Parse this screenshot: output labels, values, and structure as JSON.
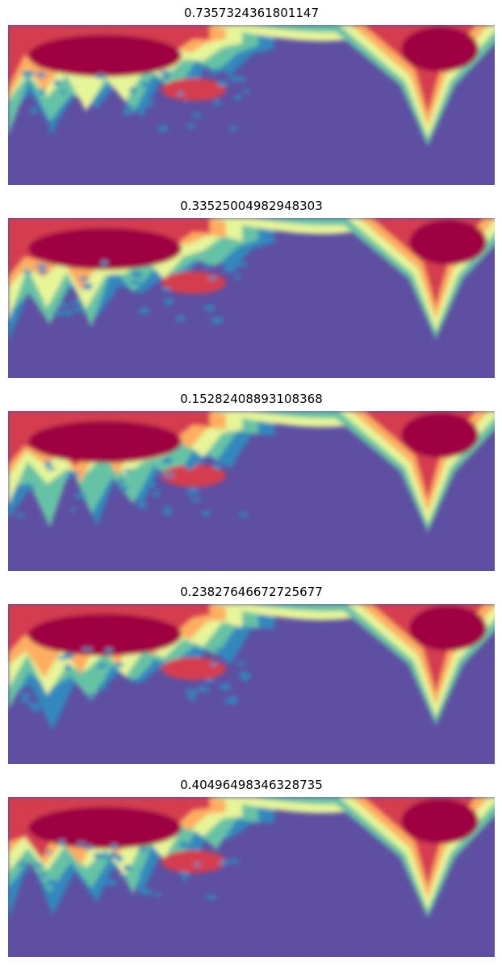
{
  "chart_data": [
    {
      "type": "heatmap",
      "title": "0.7357324361801147",
      "colormap": "Spectral_r",
      "axes_visible": false,
      "description_hint": "scalogram-like spectrogram; high energy in upper-left and upper-right lobes"
    },
    {
      "type": "heatmap",
      "title": "0.33525004982948303",
      "colormap": "Spectral_r",
      "axes_visible": false
    },
    {
      "type": "heatmap",
      "title": "0.15282408893108368",
      "colormap": "Spectral_r",
      "axes_visible": false
    },
    {
      "type": "heatmap",
      "title": "0.23827646672725677",
      "colormap": "Spectral_r",
      "axes_visible": false
    },
    {
      "type": "heatmap",
      "title": "0.40496498346328735",
      "colormap": "Spectral_r",
      "axes_visible": false
    }
  ],
  "colors": {
    "background": "#5e4fa2",
    "low": "#3288bd",
    "mid_low": "#66c2a5",
    "mid": "#e6f598",
    "mid_high": "#fdae61",
    "high": "#d53e4f",
    "max": "#9e0142"
  }
}
